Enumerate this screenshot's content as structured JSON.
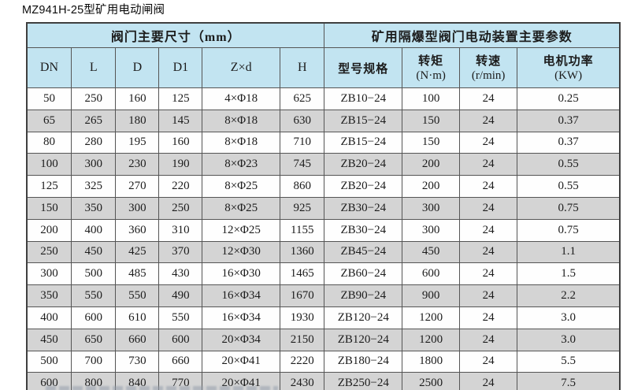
{
  "page": {
    "title": "MZ941H-25型矿用电动闸阀"
  },
  "colors": {
    "header_bg": "#c2e4f1",
    "row_bg": "#fefefe",
    "row_alt_bg": "#d4d4d4",
    "border": "#555555",
    "outer_border": "#3f3f3f"
  },
  "table": {
    "group_headers": [
      {
        "label": "阀门主要尺寸（mm）",
        "colspan": 6
      },
      {
        "label": "矿用隔爆型阀门电动装置主要参数",
        "colspan": 4
      }
    ],
    "columns": [
      {
        "label": "DN",
        "sub": ""
      },
      {
        "label": "L",
        "sub": ""
      },
      {
        "label": "D",
        "sub": ""
      },
      {
        "label": "D1",
        "sub": ""
      },
      {
        "label": "Z×d",
        "sub": ""
      },
      {
        "label": "H",
        "sub": ""
      },
      {
        "label": "型号规格",
        "sub": "",
        "cn": true
      },
      {
        "label": "转矩",
        "sub": "(N·m)",
        "cn": true
      },
      {
        "label": "转速",
        "sub": "(r/min)",
        "cn": true
      },
      {
        "label": "电机功率",
        "sub": "(KW)",
        "cn": true
      }
    ],
    "rows": [
      [
        "50",
        "250",
        "160",
        "125",
        "4×Φ18",
        "625",
        "ZB10−24",
        "100",
        "24",
        "0.25"
      ],
      [
        "65",
        "265",
        "180",
        "145",
        "8×Φ18",
        "630",
        "ZB15−24",
        "150",
        "24",
        "0.37"
      ],
      [
        "80",
        "280",
        "195",
        "160",
        "8×Φ18",
        "710",
        "ZB15−24",
        "150",
        "24",
        "0.37"
      ],
      [
        "100",
        "300",
        "230",
        "190",
        "8×Φ23",
        "745",
        "ZB20−24",
        "200",
        "24",
        "0.55"
      ],
      [
        "125",
        "325",
        "270",
        "220",
        "8×Φ25",
        "860",
        "ZB20−24",
        "200",
        "24",
        "0.55"
      ],
      [
        "150",
        "350",
        "300",
        "250",
        "8×Φ25",
        "925",
        "ZB30−24",
        "300",
        "24",
        "0.75"
      ],
      [
        "200",
        "400",
        "360",
        "310",
        "12×Φ25",
        "1155",
        "ZB30−24",
        "300",
        "24",
        "0.75"
      ],
      [
        "250",
        "450",
        "425",
        "370",
        "12×Φ30",
        "1360",
        "ZB45−24",
        "450",
        "24",
        "1.1"
      ],
      [
        "300",
        "500",
        "485",
        "430",
        "16×Φ30",
        "1465",
        "ZB60−24",
        "600",
        "24",
        "1.5"
      ],
      [
        "350",
        "550",
        "550",
        "490",
        "16×Φ34",
        "1670",
        "ZB90−24",
        "900",
        "24",
        "2.2"
      ],
      [
        "400",
        "600",
        "610",
        "550",
        "16×Φ34",
        "1930",
        "ZB120−24",
        "1200",
        "24",
        "3.0"
      ],
      [
        "450",
        "650",
        "660",
        "600",
        "20×Φ34",
        "2150",
        "ZB120−24",
        "1200",
        "24",
        "3.0"
      ],
      [
        "500",
        "700",
        "730",
        "660",
        "20×Φ41",
        "2220",
        "ZB180−24",
        "1800",
        "24",
        "5.5"
      ],
      [
        "600",
        "800",
        "840",
        "770",
        "20×Φ41",
        "2430",
        "ZB250−24",
        "2500",
        "24",
        "7.5"
      ]
    ]
  }
}
